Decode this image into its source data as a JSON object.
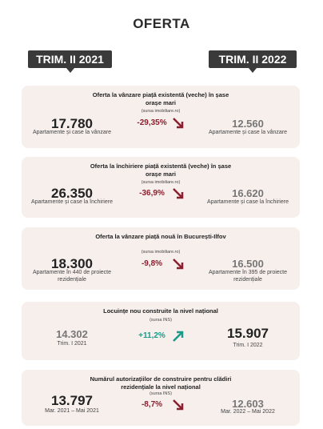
{
  "header": {
    "title": "OFERTA",
    "period_left": "TRIM. II 2021",
    "period_right": "TRIM. II 2022"
  },
  "cards": [
    {
      "title": "Oferta la vânzare piață existentă (veche) în șase orașe mari",
      "source": "(sursa imobiliare.ro)",
      "left": {
        "value": "17.780",
        "label": "Apartamente și case la vânzare"
      },
      "change": "-29,35%",
      "right": {
        "value": "12.560",
        "label": "Apartamente și case la vânzare"
      }
    },
    {
      "title": "Oferta la închiriere piață existentă (veche) în șase orașe mari",
      "source": "(sursa imobiliare.ro)",
      "left": {
        "value": "26.350",
        "label": "Apartamente și case la închiriere"
      },
      "change": "-36,9%",
      "right": {
        "value": "16.620",
        "label": "Apartamente și case la închiriere"
      }
    },
    {
      "title": "Oferta la vânzare piață nouă în București-Ilfov",
      "source": "(sursa imobiliare.ro)",
      "left": {
        "value": "18.300",
        "label": "Apartamente în 440 de proiecte rezidențiale"
      },
      "change": "-9,8%",
      "right": {
        "value": "16.500",
        "label": "Apartamente în 395 de proiecte rezidențiale"
      }
    },
    {
      "title": "Locuințe nou construite la nivel național",
      "source": "(sursa INS)",
      "left": {
        "value": "14.302",
        "label": "Trim. I 2021"
      },
      "change": "+11,2%",
      "right": {
        "value": "15.907",
        "label": "Trim. I 2022"
      }
    },
    {
      "title": "Numărul autorizațiilor de construire pentru clădiri rezidențiale la nivel național",
      "source": "(sursa INS)",
      "left": {
        "value": "13.797",
        "label": "Mar. 2021 – Mai 2021"
      },
      "change": "-8,7%",
      "right": {
        "value": "12.603",
        "label": "Mar. 2022 – Mai 2022"
      }
    }
  ]
}
